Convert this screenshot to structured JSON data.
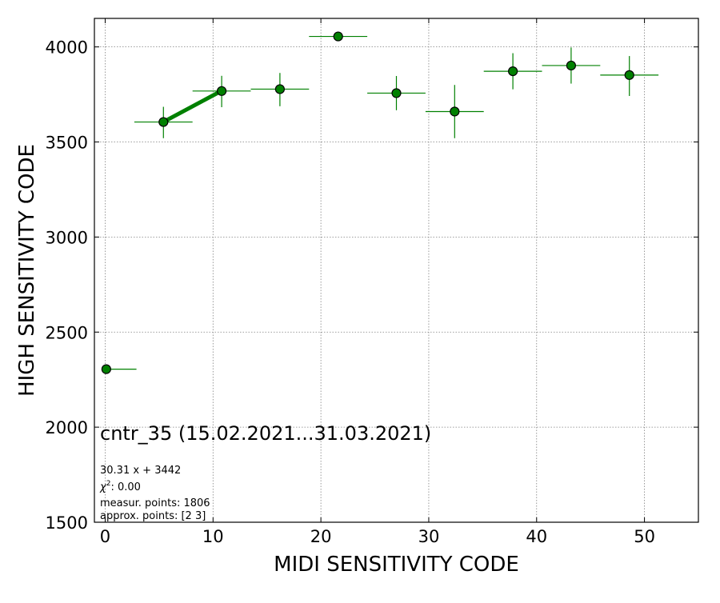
{
  "chart_data": {
    "type": "scatter",
    "title": "",
    "xlabel": "MIDI SENSITIVITY CODE",
    "ylabel": "HIGH SENSITIVITY CODE",
    "xlim": [
      -1,
      55
    ],
    "ylim": [
      1500,
      4150
    ],
    "x_ticks": [
      0,
      10,
      20,
      30,
      40,
      50
    ],
    "y_ticks": [
      1500,
      2000,
      2500,
      3000,
      3500,
      4000
    ],
    "grid": true,
    "colors": {
      "points": "#008000",
      "edge": "#000000",
      "fit": "#008000",
      "grid": "#808080"
    },
    "points": [
      {
        "x": 0.1,
        "y": 2305,
        "xerr": [
          0.0,
          2.8
        ],
        "yerr": [
          0,
          0
        ]
      },
      {
        "x": 5.4,
        "y": 3605,
        "xerr": [
          2.7,
          2.7
        ],
        "yerr": [
          85,
          80
        ]
      },
      {
        "x": 10.8,
        "y": 3768,
        "xerr": [
          2.7,
          2.7
        ],
        "yerr": [
          85,
          80
        ]
      },
      {
        "x": 16.2,
        "y": 3778,
        "xerr": [
          2.7,
          2.7
        ],
        "yerr": [
          90,
          85
        ]
      },
      {
        "x": 21.6,
        "y": 4055,
        "xerr": [
          2.7,
          2.7
        ],
        "yerr": [
          0,
          0
        ]
      },
      {
        "x": 27.0,
        "y": 3757,
        "xerr": [
          2.7,
          2.7
        ],
        "yerr": [
          90,
          90
        ]
      },
      {
        "x": 32.4,
        "y": 3660,
        "xerr": [
          2.7,
          2.7
        ],
        "yerr": [
          140,
          140
        ]
      },
      {
        "x": 37.8,
        "y": 3872,
        "xerr": [
          2.7,
          2.7
        ],
        "yerr": [
          95,
          95
        ]
      },
      {
        "x": 43.2,
        "y": 3902,
        "xerr": [
          2.7,
          2.7
        ],
        "yerr": [
          95,
          95
        ]
      },
      {
        "x": 48.6,
        "y": 3852,
        "xerr": [
          2.7,
          2.7
        ],
        "yerr": [
          110,
          100
        ]
      }
    ],
    "fit_line": {
      "slope": 30.31,
      "intercept": 3442,
      "x_range": [
        5.4,
        10.8
      ]
    },
    "annotations": {
      "title": "cntr_35 (15.02.2021...31.03.2021)",
      "equation": "30.31 x + 3442",
      "chi2_label": "χ",
      "chi2_power": "2",
      "chi2_value": ": 0.00",
      "measur_points": "measur. points: 1806",
      "approx_points": "approx. points: [2 3]"
    }
  }
}
